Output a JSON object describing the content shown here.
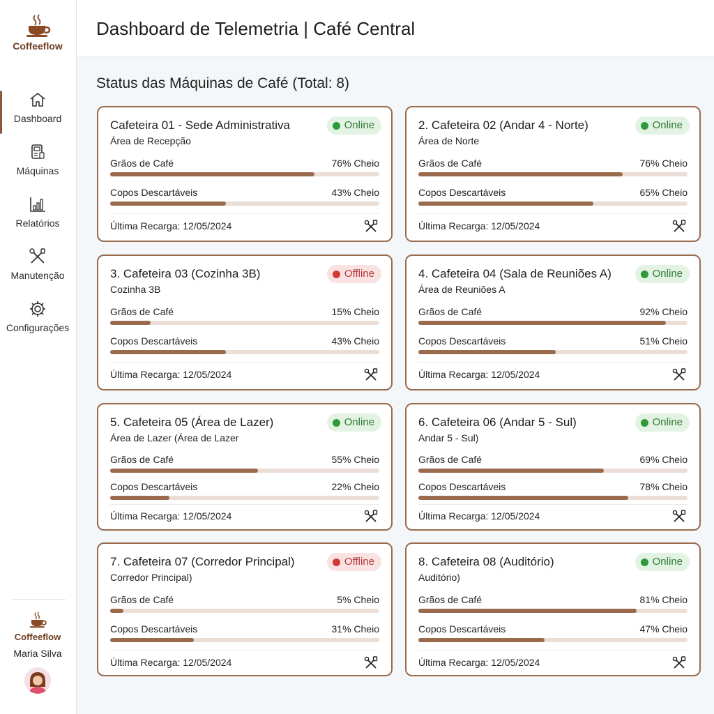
{
  "brand": {
    "name": "Coffeeflow"
  },
  "sidebar": {
    "items": [
      {
        "label": "Dashboard",
        "icon": "home-icon",
        "active": true
      },
      {
        "label": "Máquinas",
        "icon": "machine-icon",
        "active": false
      },
      {
        "label": "Relatórios",
        "icon": "chart-icon",
        "active": false
      },
      {
        "label": "Manutenção",
        "icon": "tools-icon",
        "active": false
      },
      {
        "label": "Configurações",
        "icon": "gear-icon",
        "active": false
      }
    ],
    "footer": {
      "brand": "Coffeeflow",
      "user": "Maria Silva"
    }
  },
  "header": {
    "title": "Dashboard de Telemetria | Café Central"
  },
  "main": {
    "section_title": "Status das Máquinas de Café (Total: 8)",
    "metric_labels": {
      "beans": "Grãos de Café",
      "cups": "Copos Descartáveis"
    },
    "machines": [
      {
        "name": "Cafeteira 01 - Sede Administrativa",
        "location": "Área de Recepção",
        "status": "Online",
        "beans_pct": 76,
        "beans_text": "76% Cheio",
        "cups_pct": 43,
        "cups_text": "43% Cheio",
        "recarga": "Última Recarga: 12/05/2024"
      },
      {
        "name": "2. Cafeteira 02 (Andar 4 - Norte)",
        "location": "Área de Norte",
        "status": "Online",
        "beans_pct": 76,
        "beans_text": "76% Cheio",
        "cups_pct": 65,
        "cups_text": "65% Cheio",
        "recarga": "Última Recarga: 12/05/2024"
      },
      {
        "name": "3. Cafeteira 03 (Cozinha 3B)",
        "location": "Cozinha 3B",
        "status": "Offline",
        "beans_pct": 15,
        "beans_text": "15% Cheio",
        "cups_pct": 43,
        "cups_text": "43% Cheio",
        "recarga": "Última Recarga: 12/05/2024"
      },
      {
        "name": "4. Cafeteira 04 (Sala de Reuniões A)",
        "location": "Área de Reuniões A",
        "status": "Online",
        "beans_pct": 92,
        "beans_text": "92% Cheio",
        "cups_pct": 51,
        "cups_text": "51% Cheio",
        "recarga": "Última Recarga: 12/05/2024"
      },
      {
        "name": "5. Cafeteira 05 (Área de Lazer)",
        "location": "Área de Lazer (Área de Lazer",
        "status": "Online",
        "beans_pct": 55,
        "beans_text": "55% Cheio",
        "cups_pct": 22,
        "cups_text": "22% Cheio",
        "recarga": "Última Recarga: 12/05/2024"
      },
      {
        "name": "6. Cafeteira 06 (Andar 5 - Sul)",
        "location": "Andar 5 - Sul)",
        "status": "Online",
        "beans_pct": 69,
        "beans_text": "69% Cheio",
        "cups_pct": 78,
        "cups_text": "78% Cheio",
        "recarga": "Última Recarga: 12/05/2024"
      },
      {
        "name": "7. Cafeteira 07 (Corredor Principal)",
        "location": "Corredor Principal)",
        "status": "Offline",
        "beans_pct": 5,
        "beans_text": "5% Cheio",
        "cups_pct": 31,
        "cups_text": "31% Cheio",
        "recarga": "Última Recarga: 12/05/2024"
      },
      {
        "name": "8. Cafeteira 08 (Auditório)",
        "location": "Auditório)",
        "status": "Online",
        "beans_pct": 81,
        "beans_text": "81% Cheio",
        "cups_pct": 47,
        "cups_text": "47% Cheio",
        "recarga": "Última Recarga: 12/05/2024"
      }
    ]
  },
  "colors": {
    "accent": "#9a6a4c",
    "brand": "#6b3e21",
    "online": "#2f9a38",
    "offline": "#d23a32"
  }
}
